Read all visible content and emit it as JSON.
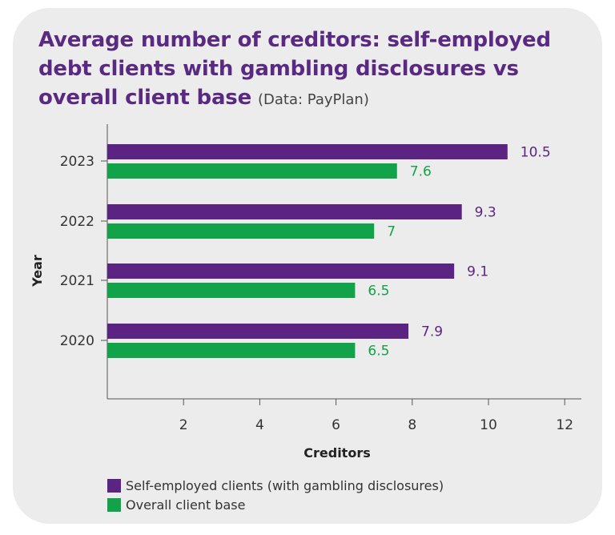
{
  "title": "Average number of creditors: self-employed debt clients with gambling disclosures vs overall client base",
  "source": "(Data: PayPlan)",
  "colors": {
    "self_employed": "#5b2483",
    "overall": "#12a34a",
    "axis": "#555555",
    "tick_text": "#333333"
  },
  "chart_data": {
    "type": "bar",
    "orientation": "horizontal",
    "categories": [
      "2023",
      "2022",
      "2021",
      "2020"
    ],
    "series": [
      {
        "name": "Self-employed clients (with gambling disclosures)",
        "values": [
          10.5,
          9.3,
          9.1,
          7.9
        ],
        "labels": [
          "10.5",
          "9.3",
          "9.1",
          "7.9"
        ]
      },
      {
        "name": "Overall client base",
        "values": [
          7.6,
          7,
          6.5,
          6.5
        ],
        "labels": [
          "7.6",
          "7",
          "6.5",
          "6.5"
        ]
      }
    ],
    "xlabel": "Creditors",
    "ylabel": "Year",
    "xlim": [
      0,
      12.5
    ],
    "xticks": [
      2,
      4,
      6,
      8,
      10,
      12
    ],
    "legend_position": "bottom-left",
    "grid": false
  }
}
